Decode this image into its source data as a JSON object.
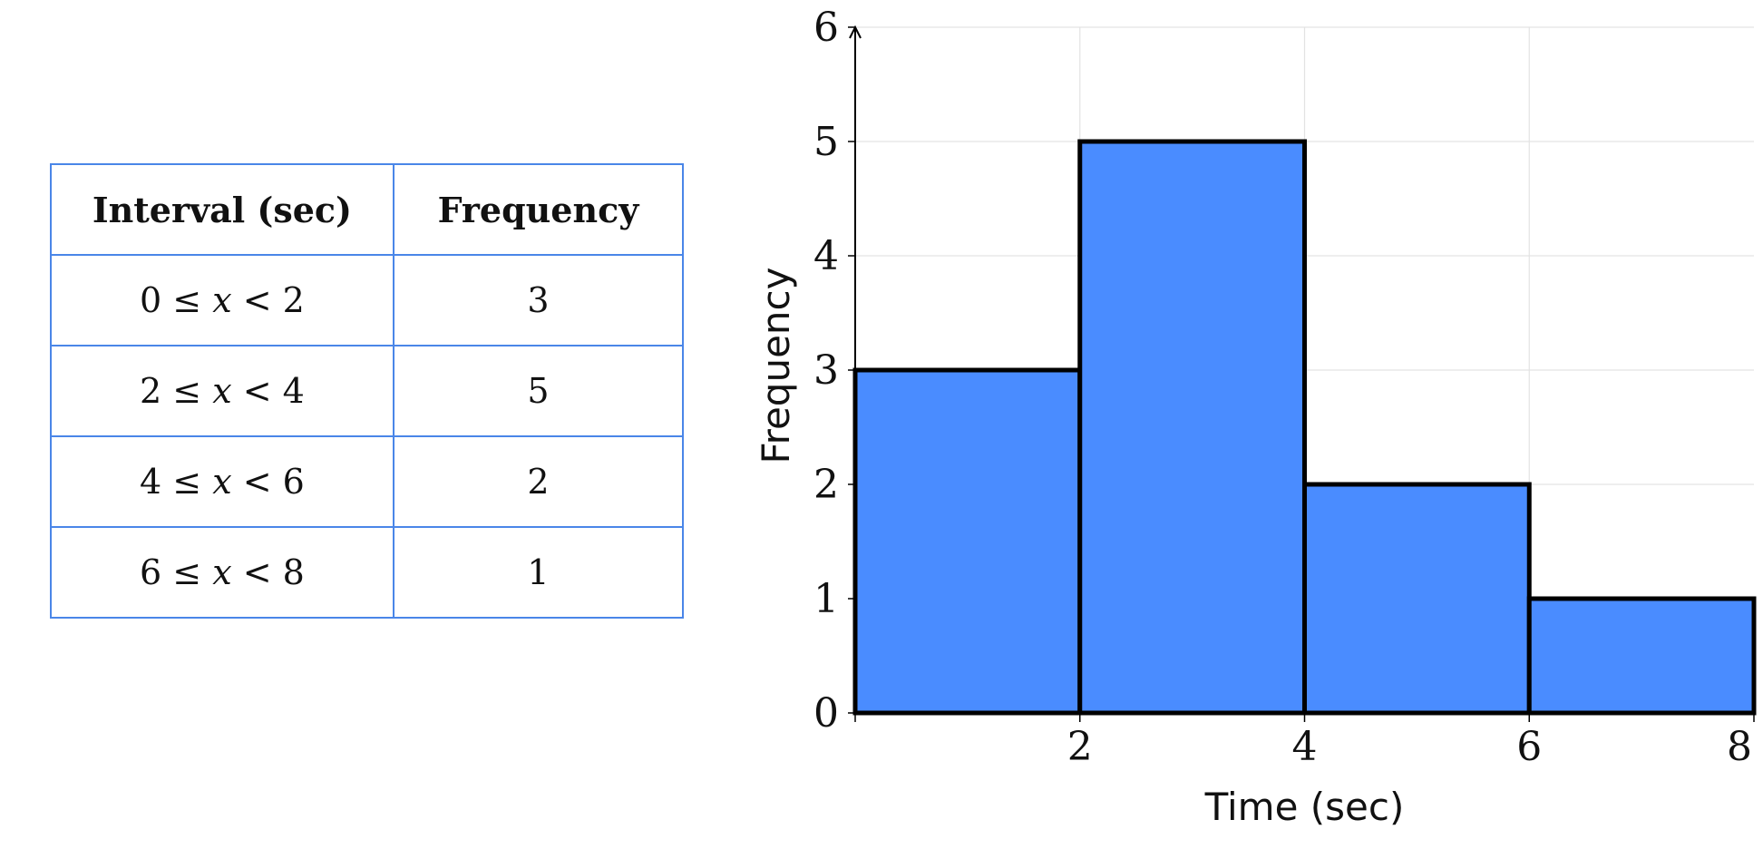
{
  "table": {
    "headers": [
      "Interval (sec)",
      "Frequency"
    ],
    "rows": [
      {
        "interval": {
          "lo": "0",
          "hi": "2"
        },
        "frequency": "3"
      },
      {
        "interval": {
          "lo": "2",
          "hi": "4"
        },
        "frequency": "5"
      },
      {
        "interval": {
          "lo": "4",
          "hi": "6"
        },
        "frequency": "2"
      },
      {
        "interval": {
          "lo": "6",
          "hi": "8"
        },
        "frequency": "1"
      }
    ]
  },
  "chart_data": {
    "type": "bar",
    "subtype": "histogram",
    "bins": [
      {
        "x0": 0,
        "x1": 2,
        "value": 3
      },
      {
        "x0": 2,
        "x1": 4,
        "value": 5
      },
      {
        "x0": 4,
        "x1": 6,
        "value": 2
      },
      {
        "x0": 6,
        "x1": 8,
        "value": 1
      }
    ],
    "xlabel": "Time (sec)",
    "ylabel": "Frequency",
    "xlim": [
      0,
      8
    ],
    "ylim": [
      0,
      6
    ],
    "xticks": [
      "2",
      "4",
      "6",
      "8"
    ],
    "yticks": [
      "0",
      "1",
      "2",
      "3",
      "4",
      "5",
      "6"
    ],
    "grid": true,
    "colors": {
      "bar_fill": "#4a8cff",
      "bar_edge": "#000000",
      "grid": "#e3e3e3",
      "table_border": "#4a86e8"
    }
  }
}
